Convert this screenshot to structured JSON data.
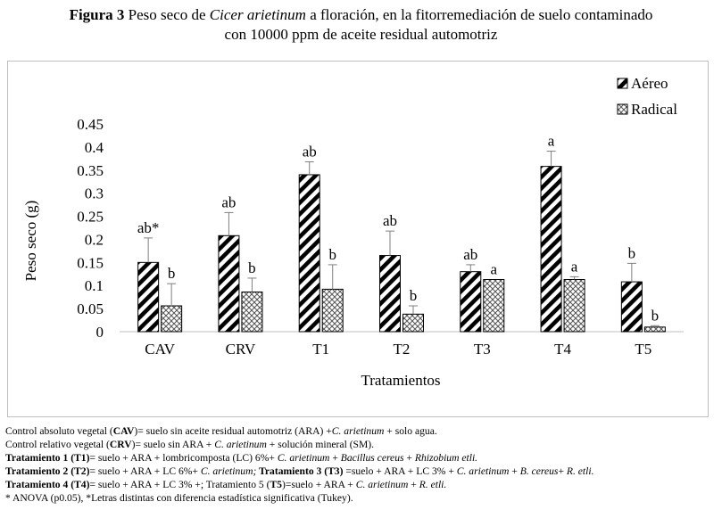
{
  "title": {
    "label": "Figura 3",
    "text_a": " Peso seco de ",
    "species": "Cicer arietinum",
    "text_b": " a floración, en la fitorremediación de suelo contaminado",
    "line2": "con 10000 ppm de aceite residual automotriz"
  },
  "chart_data": {
    "type": "bar",
    "categories": [
      "CAV",
      "CRV",
      "T1",
      "T2",
      "T3",
      "T4",
      "T5"
    ],
    "series": [
      {
        "name": "Aéreo",
        "pattern": "diagonal-stripes",
        "values": [
          0.15,
          0.208,
          0.34,
          0.165,
          0.13,
          0.358,
          0.108
        ],
        "errors": [
          0.053,
          0.05,
          0.028,
          0.053,
          0.015,
          0.033,
          0.04
        ],
        "letters": [
          "ab*",
          "ab",
          "ab",
          "ab",
          "ab",
          "a",
          "b"
        ]
      },
      {
        "name": "Radical",
        "pattern": "crosshatch",
        "values": [
          0.056,
          0.086,
          0.092,
          0.038,
          0.113,
          0.113,
          0.01
        ],
        "errors": [
          0.048,
          0.03,
          0.053,
          0.018,
          0.0,
          0.006,
          0.003
        ],
        "letters": [
          "b",
          "b",
          "b",
          "b",
          "a",
          "a",
          "b"
        ]
      }
    ],
    "xlabel": "Tratamientos",
    "ylabel": "Peso seco (g)",
    "ylim": [
      0,
      0.45
    ],
    "yticks": [
      "0",
      "0.05",
      "0.1",
      "0.15",
      "0.2",
      "0.25",
      "0.3",
      "0.35",
      "0.4",
      "0.45"
    ],
    "grid": false,
    "legend_position": "top-right"
  },
  "notes": {
    "l1_a": "Control absoluto vegetal (",
    "l1_b": "CAV",
    "l1_c": ")= suelo sin aceite residual automotriz (ARA) +",
    "l1_d": "C. arietinum",
    "l1_e": " +  solo agua.",
    "l2_a": "Control relativo vegetal (",
    "l2_b": "CRV",
    "l2_c": ")= suelo  sin ARA + ",
    "l2_d": "C. arietinum",
    "l2_e": " + solución mineral (SM).",
    "l3_a": "Tratamiento  1 (T1)",
    "l3_b": "= suelo + ARA + lombricomposta (LC) 6%+  ",
    "l3_c": "C. arietinum",
    "l3_d": " + ",
    "l3_e": "Bacillus cereus",
    "l3_f": " + ",
    "l3_g": "Rhizobium etli.",
    "l4_a": "Tratamiento 2 (T2)",
    "l4_b": "=  suelo + ARA + LC 6%+ ",
    "l4_c": "C. arietinum;",
    "l4_d": " Tratamiento 3 (T3)",
    "l4_e": " =suelo + ARA + LC 3% + ",
    "l4_f": "C. arietinum",
    "l4_g": " + ",
    "l4_h": "B. cereus",
    "l4_i": "+ ",
    "l4_j": "R. etli.",
    "l5_a": "Tratamiento 4 (T4)",
    "l5_b": "= suelo + ARA + LC 3% +; Tratamiento 5 (",
    "l5_c": "T5",
    "l5_d": ")=suelo + ARA + ",
    "l5_e": "C. arietinum",
    "l5_f": " + ",
    "l5_g": "R. etli.",
    "l6": "* ANOVA (p⁠0.05), *Letras distintas con diferencia estadística significativa (Tukey)."
  }
}
